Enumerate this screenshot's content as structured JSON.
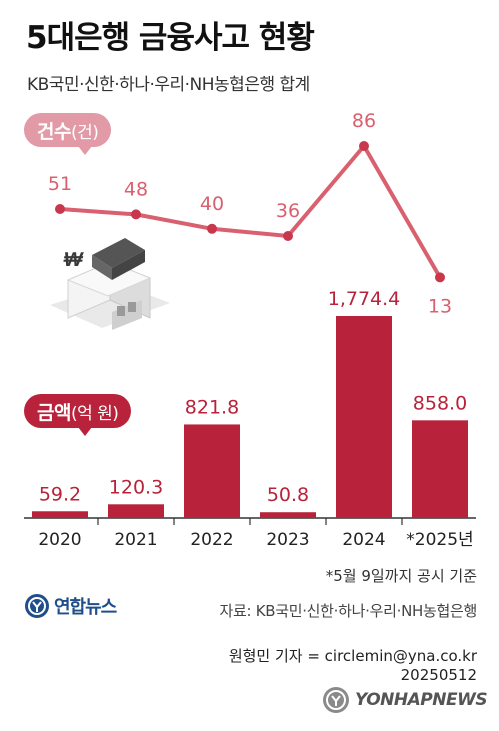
{
  "title": "5대은행 금융사고 현황",
  "subtitle": "KB국민·신한·하나·우리·NH농협은행 합계",
  "count_label": {
    "main": "건수",
    "unit": "(건)"
  },
  "amount_label": {
    "main": "금액",
    "unit": "(억 원)"
  },
  "colors": {
    "count_line": "#d9606f",
    "count_text": "#d9606f",
    "bar": "#b8233b",
    "amount_text": "#b8233b"
  },
  "chart_data": [
    {
      "type": "line",
      "categories": [
        "2020",
        "2021",
        "2022",
        "2023",
        "2024",
        "*2025년"
      ],
      "series": [
        {
          "name": "건수",
          "values": [
            51,
            48,
            40,
            36,
            86,
            13
          ]
        }
      ],
      "value_labels": [
        "51",
        "48",
        "40",
        "36",
        "86",
        "13"
      ]
    },
    {
      "type": "bar",
      "categories": [
        "2020",
        "2021",
        "2022",
        "2023",
        "2024",
        "*2025년"
      ],
      "series": [
        {
          "name": "금액",
          "values": [
            59.2,
            120.3,
            821.8,
            50.8,
            1774.4,
            858.0
          ]
        }
      ],
      "value_labels": [
        "59.2",
        "120.3",
        "821.8",
        "50.8",
        "1,774.4",
        "858.0"
      ]
    }
  ],
  "note": "*5월 9일까지 공시 기준",
  "logo_text": "연합뉴스",
  "source": "자료: KB국민·신한·하나·우리·NH농협은행",
  "reporter": "원형민 기자 = circlemin@yna.co.kr",
  "date": "20250512",
  "watermark": "YONHAPNEWS",
  "icons": [
    "bank-building-icon",
    "won-sign-icon",
    "yonhap-logo-icon"
  ]
}
